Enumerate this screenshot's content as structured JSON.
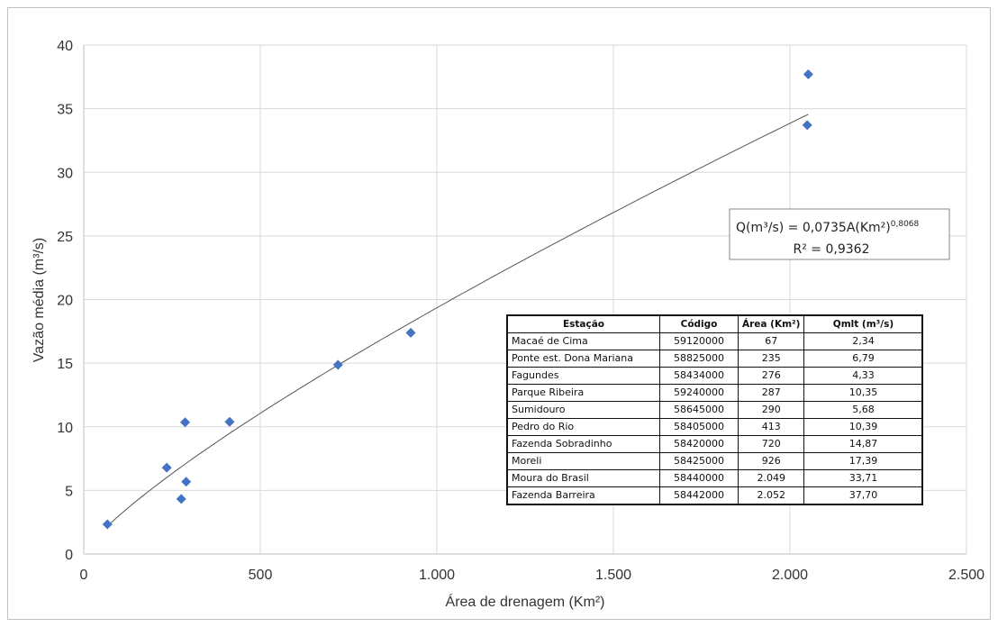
{
  "chart_data": {
    "type": "scatter",
    "title": "",
    "xlabel": "Área de drenagem (Km²)",
    "ylabel": "Vazão média (m³/s)",
    "xlim": [
      0,
      2500
    ],
    "ylim": [
      0,
      40
    ],
    "x_ticks": [
      "0",
      "500",
      "1.000",
      "1.500",
      "2.000",
      "2.500"
    ],
    "y_ticks": [
      "0",
      "5",
      "10",
      "15",
      "20",
      "25",
      "30",
      "35",
      "40"
    ],
    "grid": true,
    "marker_color": "#4472c4",
    "trendline_color": "#555555",
    "series": [
      {
        "x": [
          67,
          235,
          276,
          287,
          290,
          413,
          720,
          926,
          2049,
          2052
        ],
        "y": [
          2.34,
          6.79,
          4.33,
          10.35,
          5.68,
          10.39,
          14.87,
          17.39,
          33.71,
          37.7
        ]
      }
    ],
    "trendline": {
      "type": "power",
      "coefficient": 0.0735,
      "exponent": 0.8068,
      "x_range": [
        67,
        2052
      ]
    },
    "equation": {
      "line1_main": "Q(m³/s) = 0,0735A(Km²)",
      "line1_exp": "0,8068",
      "line2": "R² = 0,9362"
    },
    "table": {
      "headers": [
        "Estação",
        "Código",
        "Área (Km²)",
        "Qmlt (m³/s)"
      ],
      "rows": [
        [
          "Macaé de Cima",
          "59120000",
          "67",
          "2,34"
        ],
        [
          "Ponte est. Dona Mariana",
          "58825000",
          "235",
          "6,79"
        ],
        [
          "Fagundes",
          "58434000",
          "276",
          "4,33"
        ],
        [
          "Parque Ribeira",
          "59240000",
          "287",
          "10,35"
        ],
        [
          "Sumidouro",
          "58645000",
          "290",
          "5,68"
        ],
        [
          "Pedro do Rio",
          "58405000",
          "413",
          "10,39"
        ],
        [
          "Fazenda Sobradinho",
          "58420000",
          "720",
          "14,87"
        ],
        [
          "Moreli",
          "58425000",
          "926",
          "17,39"
        ],
        [
          "Moura do Brasil",
          "58440000",
          "2.049",
          "33,71"
        ],
        [
          "Fazenda Barreira",
          "58442000",
          "2.052",
          "37,70"
        ]
      ]
    }
  }
}
